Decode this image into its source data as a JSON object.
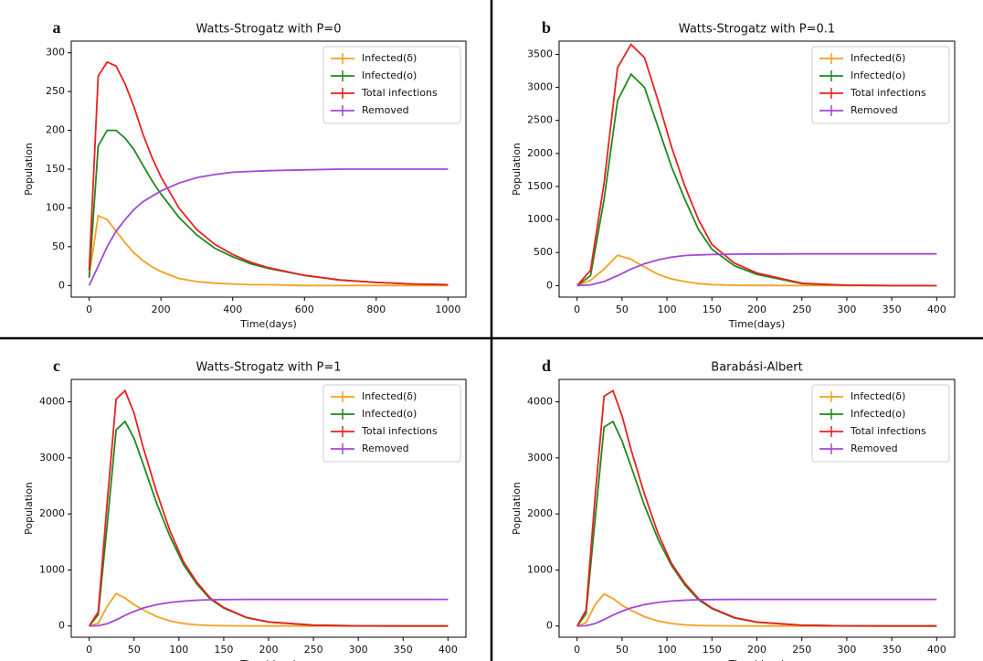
{
  "chart_data": [
    {
      "type": "line",
      "label": "a",
      "title": "Watts-Strogatz with P=0",
      "x_label": "Time(days)",
      "y_label": "Population",
      "x": [
        0,
        25,
        50,
        75,
        100,
        125,
        150,
        175,
        200,
        250,
        300,
        350,
        400,
        450,
        500,
        600,
        700,
        800,
        900,
        1000
      ],
      "xlim": [
        -50,
        1050
      ],
      "xticks": [
        0,
        200,
        400,
        600,
        800,
        1000
      ],
      "ylim": [
        -15,
        315
      ],
      "yticks": [
        0,
        50,
        100,
        150,
        200,
        250,
        300
      ],
      "legend": "upper right",
      "series": [
        {
          "name": "Infected(δ)",
          "color": "#f5a020",
          "values": [
            12,
            90,
            85,
            70,
            55,
            42,
            32,
            24,
            18,
            9,
            5,
            3,
            2,
            1,
            1,
            0,
            0,
            0,
            0,
            0
          ]
        },
        {
          "name": "Infected(o)",
          "color": "#1e8a1e",
          "values": [
            10,
            180,
            200,
            200,
            190,
            175,
            155,
            135,
            118,
            88,
            65,
            48,
            37,
            28,
            22,
            13,
            7,
            4,
            2,
            1
          ]
        },
        {
          "name": "Total infections",
          "color": "#e8211f",
          "values": [
            20,
            270,
            288,
            283,
            260,
            230,
            195,
            165,
            140,
            100,
            72,
            53,
            40,
            30,
            23,
            13,
            7,
            4,
            2,
            1
          ]
        },
        {
          "name": "Removed",
          "color": "#a347d6",
          "values": [
            0,
            25,
            50,
            70,
            85,
            98,
            108,
            115,
            122,
            132,
            139,
            143,
            146,
            147,
            148,
            149,
            150,
            150,
            150,
            150
          ]
        }
      ]
    },
    {
      "type": "line",
      "label": "b",
      "title": "Watts-Strogatz with P=0.1",
      "x_label": "Time(days)",
      "y_label": "Population",
      "x": [
        0,
        15,
        30,
        45,
        60,
        75,
        90,
        105,
        120,
        135,
        150,
        175,
        200,
        250,
        300,
        350,
        400
      ],
      "xlim": [
        -20,
        420
      ],
      "xticks": [
        0,
        50,
        100,
        150,
        200,
        250,
        300,
        350,
        400
      ],
      "ylim": [
        -175,
        3700
      ],
      "yticks": [
        0,
        500,
        1000,
        1500,
        2000,
        2500,
        3000,
        3500
      ],
      "legend": "upper right",
      "series": [
        {
          "name": "Infected(δ)",
          "color": "#f5a020",
          "values": [
            0,
            80,
            250,
            460,
            400,
            280,
            170,
            100,
            60,
            30,
            15,
            5,
            2,
            0,
            0,
            0,
            0
          ]
        },
        {
          "name": "Infected(o)",
          "color": "#1e8a1e",
          "values": [
            0,
            150,
            1300,
            2800,
            3200,
            3000,
            2400,
            1800,
            1300,
            850,
            550,
            300,
            170,
            30,
            5,
            0,
            0
          ]
        },
        {
          "name": "Total infections",
          "color": "#e8211f",
          "values": [
            0,
            230,
            1550,
            3300,
            3650,
            3450,
            2800,
            2100,
            1500,
            1000,
            620,
            340,
            190,
            35,
            5,
            0,
            0
          ]
        },
        {
          "name": "Removed",
          "color": "#a347d6",
          "values": [
            0,
            10,
            60,
            150,
            250,
            330,
            390,
            430,
            455,
            465,
            470,
            475,
            478,
            480,
            480,
            480,
            480
          ]
        }
      ]
    },
    {
      "type": "line",
      "label": "c",
      "title": "Watts-Strogatz with P=1",
      "x_label": "Time(days)",
      "y_label": "Population",
      "x": [
        0,
        10,
        20,
        30,
        40,
        50,
        60,
        75,
        90,
        105,
        120,
        135,
        150,
        175,
        200,
        250,
        300,
        350,
        400
      ],
      "xlim": [
        -20,
        420
      ],
      "xticks": [
        0,
        50,
        100,
        150,
        200,
        250,
        300,
        350,
        400
      ],
      "ylim": [
        -200,
        4400
      ],
      "yticks": [
        0,
        1000,
        2000,
        3000,
        4000
      ],
      "legend": "upper right",
      "series": [
        {
          "name": "Infected(δ)",
          "color": "#f5a020",
          "values": [
            0,
            50,
            350,
            580,
            500,
            380,
            290,
            170,
            90,
            45,
            20,
            10,
            5,
            2,
            0,
            0,
            0,
            0,
            0
          ]
        },
        {
          "name": "Infected(o)",
          "color": "#1e8a1e",
          "values": [
            0,
            200,
            1800,
            3500,
            3650,
            3350,
            2900,
            2200,
            1600,
            1100,
            750,
            480,
            320,
            150,
            70,
            15,
            3,
            0,
            0
          ]
        },
        {
          "name": "Total infections",
          "color": "#e8211f",
          "values": [
            0,
            250,
            2200,
            4050,
            4200,
            3800,
            3200,
            2400,
            1700,
            1150,
            780,
            500,
            330,
            155,
            72,
            15,
            3,
            0,
            0
          ]
        },
        {
          "name": "Removed",
          "color": "#a347d6",
          "values": [
            0,
            5,
            40,
            110,
            190,
            260,
            320,
            380,
            420,
            445,
            460,
            468,
            472,
            475,
            476,
            476,
            476,
            476,
            476
          ]
        }
      ]
    },
    {
      "type": "line",
      "label": "d",
      "title": "Barabási-Albert",
      "x_label": "Time(days)",
      "y_label": "Population",
      "x": [
        0,
        10,
        20,
        30,
        40,
        50,
        60,
        75,
        90,
        105,
        120,
        135,
        150,
        175,
        200,
        250,
        300,
        350,
        400
      ],
      "xlim": [
        -20,
        420
      ],
      "xticks": [
        0,
        50,
        100,
        150,
        200,
        250,
        300,
        350,
        400
      ],
      "ylim": [
        -200,
        4400
      ],
      "yticks": [
        0,
        1000,
        2000,
        3000,
        4000
      ],
      "legend": "upper right",
      "series": [
        {
          "name": "Infected(δ)",
          "color": "#f5a020",
          "values": [
            0,
            60,
            380,
            570,
            490,
            370,
            280,
            165,
            88,
            44,
            20,
            10,
            5,
            2,
            0,
            0,
            0,
            0,
            0
          ]
        },
        {
          "name": "Infected(o)",
          "color": "#1e8a1e",
          "values": [
            0,
            220,
            1900,
            3550,
            3650,
            3300,
            2850,
            2150,
            1550,
            1080,
            730,
            470,
            310,
            145,
            68,
            14,
            3,
            0,
            0
          ]
        },
        {
          "name": "Total infections",
          "color": "#e8211f",
          "values": [
            0,
            280,
            2300,
            4100,
            4200,
            3750,
            3150,
            2350,
            1650,
            1120,
            760,
            490,
            320,
            150,
            70,
            14,
            3,
            0,
            0
          ]
        },
        {
          "name": "Removed",
          "color": "#a347d6",
          "values": [
            0,
            6,
            45,
            115,
            195,
            265,
            322,
            382,
            422,
            446,
            460,
            468,
            472,
            475,
            476,
            476,
            476,
            476,
            476
          ]
        }
      ]
    }
  ]
}
